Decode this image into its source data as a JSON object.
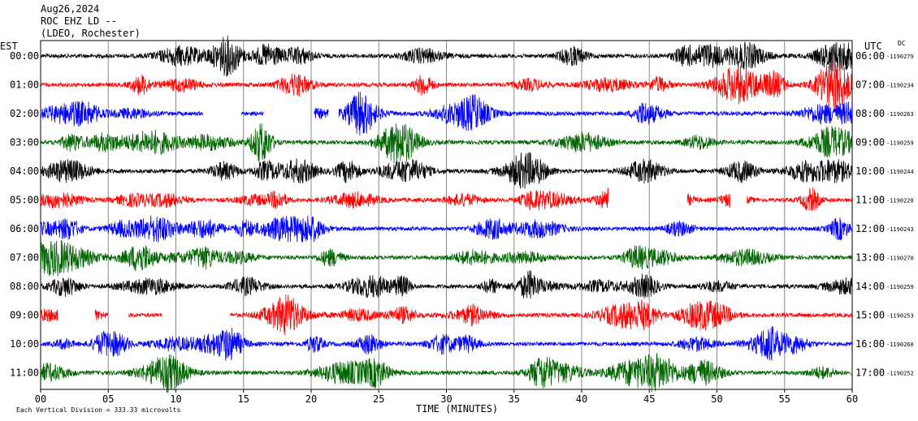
{
  "header": {
    "date": "Aug26,2024",
    "station": "ROC EHZ LD --",
    "location": "(LDEO, Rochester)"
  },
  "labels": {
    "left_tz": "EST",
    "right_tz": "UTC",
    "dc": "DC"
  },
  "footer": {
    "scale_text": "Each Vertical Division = 333.33 microvolts"
  },
  "colors": {
    "black": "#000000",
    "red": "#ff0000",
    "blue": "#0000ff",
    "green": "#006400",
    "grid": "#888888"
  },
  "chart_data": {
    "type": "line",
    "title": "Aug26,2024 ROC EHZ LD -- (LDEO, Rochester)",
    "xlabel": "TIME (MINUTES)",
    "ylabel": "",
    "xlim": [
      0,
      60
    ],
    "x_ticks": [
      "00",
      "05",
      "10",
      "15",
      "20",
      "25",
      "30",
      "35",
      "40",
      "45",
      "50",
      "55",
      "60"
    ],
    "rows": [
      {
        "est": "00:00",
        "utc": "06:00",
        "dc": "-1190279",
        "color": "black"
      },
      {
        "est": "01:00",
        "utc": "07:00",
        "dc": "-1190234",
        "color": "red"
      },
      {
        "est": "02:00",
        "utc": "08:00",
        "dc": "-1190263",
        "color": "blue"
      },
      {
        "est": "03:00",
        "utc": "09:00",
        "dc": "-1190259",
        "color": "green"
      },
      {
        "est": "04:00",
        "utc": "10:00",
        "dc": "-1190244",
        "color": "black"
      },
      {
        "est": "05:00",
        "utc": "11:00",
        "dc": "-1190228",
        "color": "red"
      },
      {
        "est": "06:00",
        "utc": "12:00",
        "dc": "-1190243",
        "color": "blue"
      },
      {
        "est": "07:00",
        "utc": "13:00",
        "dc": "-1190270",
        "color": "green"
      },
      {
        "est": "08:00",
        "utc": "14:00",
        "dc": "-1190259",
        "color": "black"
      },
      {
        "est": "09:00",
        "utc": "15:00",
        "dc": "-1190253",
        "color": "red"
      },
      {
        "est": "10:00",
        "utc": "16:00",
        "dc": "-1190260",
        "color": "blue"
      },
      {
        "est": "11:00",
        "utc": "17:00",
        "dc": "-1190252",
        "color": "green"
      }
    ],
    "gaps": [
      {
        "row": 2,
        "from": 12.0,
        "to": 14.8
      },
      {
        "row": 2,
        "from": 16.5,
        "to": 20.2
      },
      {
        "row": 2,
        "from": 21.3,
        "to": 22.0
      },
      {
        "row": 5,
        "from": 42.0,
        "to": 47.8
      },
      {
        "row": 5,
        "from": 51.0,
        "to": 52.2
      },
      {
        "row": 9,
        "from": 1.3,
        "to": 4.0
      },
      {
        "row": 9,
        "from": 5.0,
        "to": 6.5
      },
      {
        "row": 9,
        "from": 9.0,
        "to": 14.0
      }
    ]
  }
}
